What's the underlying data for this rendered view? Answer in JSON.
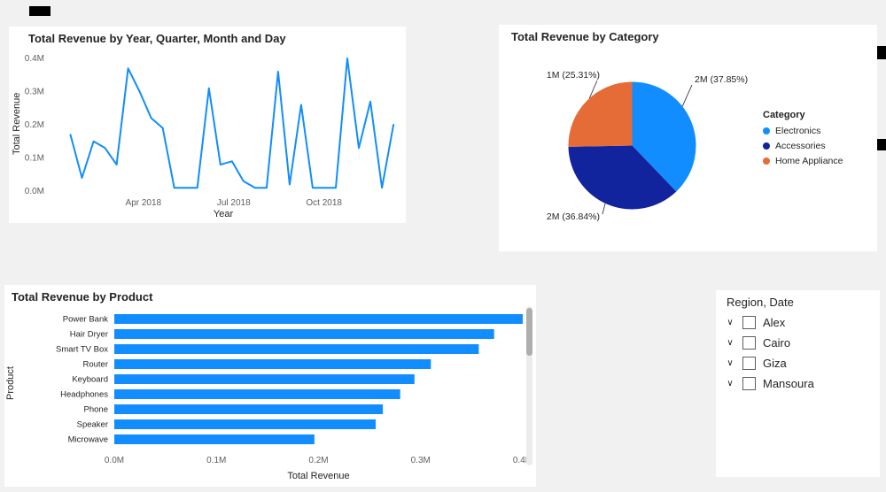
{
  "canvas": {
    "background": "#f1f1f1",
    "card_background": "#ffffff"
  },
  "colors": {
    "primary_blue": "#118DFF",
    "navy": "#12239E",
    "orange": "#E66C37",
    "axis_text": "#605E5C",
    "title_text": "#252423"
  },
  "chart_data": [
    {
      "id": "revenue_by_date",
      "type": "line",
      "title": "Total Revenue by Year, Quarter, Month and Day",
      "xlabel": "Year",
      "ylabel": "Total Revenue",
      "ylim": [
        0,
        0.4
      ],
      "y_ticks": [
        "0.0M",
        "0.1M",
        "0.2M",
        "0.3M",
        "0.4M"
      ],
      "x_ticks": [
        {
          "label": "Apr 2018",
          "pos": 0.27
        },
        {
          "label": "Jul 2018",
          "pos": 0.53
        },
        {
          "label": "Oct 2018",
          "pos": 0.79
        }
      ],
      "values": [
        0.17,
        0.04,
        0.15,
        0.13,
        0.08,
        0.37,
        0.3,
        0.22,
        0.19,
        0.01,
        0.01,
        0.01,
        0.31,
        0.08,
        0.09,
        0.03,
        0.01,
        0.01,
        0.36,
        0.02,
        0.26,
        0.01,
        0.01,
        0.01,
        0.4,
        0.13,
        0.27,
        0.01,
        0.2
      ],
      "line_color": "#118DFF",
      "grid": false,
      "legend": "none"
    },
    {
      "id": "revenue_by_category",
      "type": "pie",
      "title": "Total Revenue by Category",
      "legend_title": "Category",
      "legend_position": "right",
      "slices": [
        {
          "label": "Electronics",
          "value_label": "2M (37.85%)",
          "pct": 37.85,
          "color": "#118DFF"
        },
        {
          "label": "Accessories",
          "value_label": "2M (36.84%)",
          "pct": 36.84,
          "color": "#12239E"
        },
        {
          "label": "Home Appliance",
          "value_label": "1M (25.31%)",
          "pct": 25.31,
          "color": "#E66C37"
        }
      ]
    },
    {
      "id": "revenue_by_product",
      "type": "bar",
      "orientation": "horizontal",
      "title": "Total Revenue by Product",
      "xlabel": "Total Revenue",
      "ylabel": "Product",
      "xlim": [
        0,
        0.4
      ],
      "x_ticks": [
        "0.0M",
        "0.1M",
        "0.2M",
        "0.3M",
        "0.4M"
      ],
      "categories": [
        "Power Bank",
        "Hair Dryer",
        "Smart TV Box",
        "Router",
        "Keyboard",
        "Headphones",
        "Phone",
        "Speaker",
        "Microwave"
      ],
      "values": [
        0.4,
        0.372,
        0.357,
        0.31,
        0.294,
        0.28,
        0.263,
        0.256,
        0.196
      ],
      "bar_color": "#118DFF",
      "grid": false,
      "legend": "none"
    }
  ],
  "slicer": {
    "title": "Region, Date",
    "items": [
      {
        "label": "Alex",
        "checked": false
      },
      {
        "label": "Cairo",
        "checked": false
      },
      {
        "label": "Giza",
        "checked": false
      },
      {
        "label": "Mansoura",
        "checked": false
      }
    ]
  }
}
